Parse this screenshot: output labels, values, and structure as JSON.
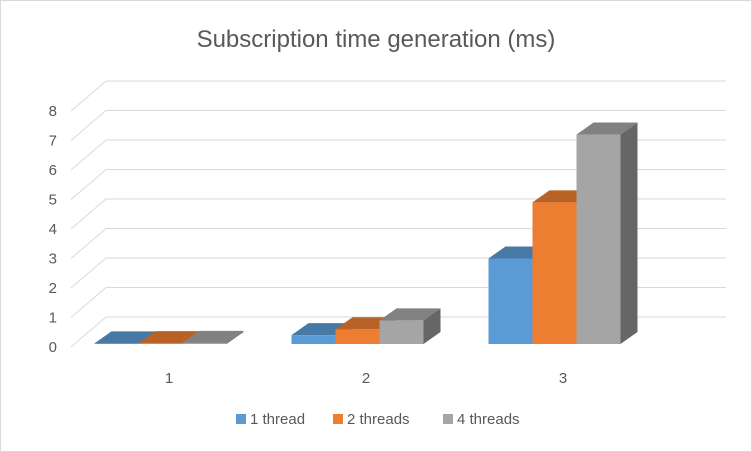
{
  "chart_data": {
    "type": "bar",
    "subtype": "3d-clustered-column",
    "title": "Subscription time generation (ms)",
    "xlabel": "",
    "ylabel": "",
    "categories": [
      "1",
      "2",
      "3"
    ],
    "ylim": [
      0,
      8
    ],
    "yticks": [
      "0",
      "1",
      "2",
      "3",
      "4",
      "5",
      "6",
      "7",
      "8"
    ],
    "grid": true,
    "legend_position": "bottom",
    "series": [
      {
        "name": "1 thread",
        "color": "#5b9bd5",
        "values": [
          0.02,
          0.3,
          2.9
        ]
      },
      {
        "name": "2 threads",
        "color": "#ed7d31",
        "values": [
          0.03,
          0.5,
          4.8
        ]
      },
      {
        "name": "4 threads",
        "color": "#a5a5a5",
        "values": [
          0.04,
          0.8,
          7.1
        ]
      }
    ]
  }
}
